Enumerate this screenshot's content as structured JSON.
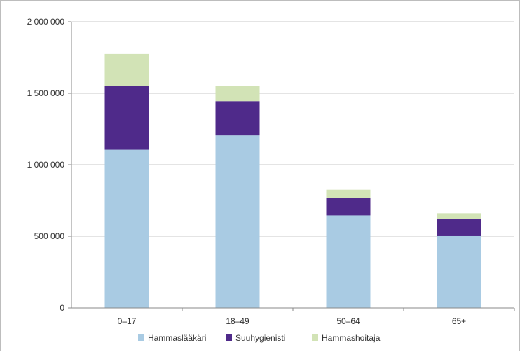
{
  "chart_data": {
    "type": "bar",
    "stacked": true,
    "categories": [
      "0–17",
      "18–49",
      "50–64",
      "65+"
    ],
    "series": [
      {
        "name": "Hammaslääkäri",
        "color": "#a9cbe3",
        "values": [
          1105000,
          1205000,
          645000,
          505000
        ]
      },
      {
        "name": "Suuhygienisti",
        "color": "#4f2a8a",
        "values": [
          445000,
          240000,
          120000,
          115000
        ]
      },
      {
        "name": "Hammashoitaja",
        "color": "#d2e3b6",
        "values": [
          225000,
          105000,
          60000,
          40000
        ]
      }
    ],
    "yticks": [
      {
        "value": 0,
        "label": "0"
      },
      {
        "value": 500000,
        "label": "500 000"
      },
      {
        "value": 1000000,
        "label": "1 000 000"
      },
      {
        "value": 1500000,
        "label": "1 500 000"
      },
      {
        "value": 2000000,
        "label": "2 000 000"
      }
    ],
    "ylim": [
      0,
      2000000
    ],
    "grid": true,
    "legend_position": "bottom",
    "title": "",
    "xlabel": "",
    "ylabel": ""
  }
}
